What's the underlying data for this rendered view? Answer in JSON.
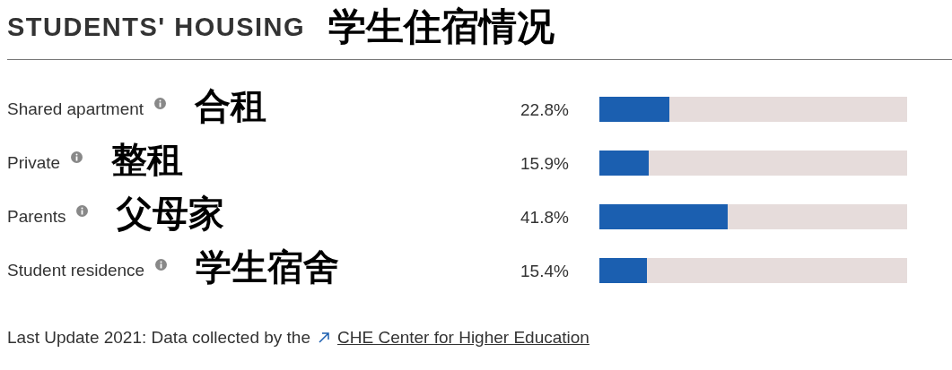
{
  "chart_data": {
    "type": "bar",
    "orientation": "horizontal",
    "stacked": true,
    "title": "STUDENTS' HOUSING",
    "subtitle": "学生住宿情况",
    "categories": [
      "Shared apartment",
      "Private",
      "Parents",
      "Student residence"
    ],
    "series": [
      {
        "color": "#1b5fb0",
        "values": [
          22.8,
          15.9,
          41.8,
          15.4
        ],
        "value_labels": [
          "22.8%",
          "15.9%",
          "41.8%",
          "15.4%"
        ]
      },
      {
        "color": "#e6dcdb",
        "values": [
          77.2,
          84.1,
          58.2,
          84.6
        ]
      }
    ],
    "xlim": [
      0,
      100
    ],
    "tick_labels": "y",
    "legend": false,
    "annotations": [
      "合租",
      "整租",
      "父母家",
      "学生宿舍",
      "Last Update 2021: Data collected by the",
      "CHE Center for Higher Education"
    ]
  }
}
